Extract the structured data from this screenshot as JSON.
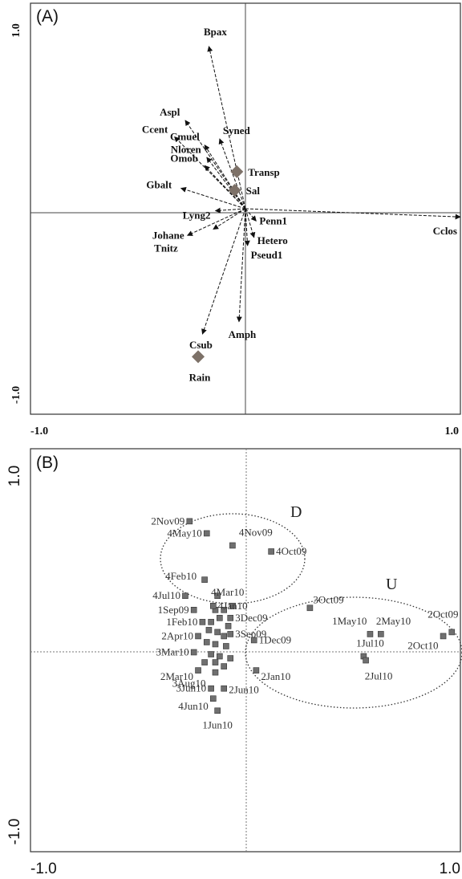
{
  "chart_data": [
    {
      "type": "scatter",
      "panel": "(A)",
      "xlim": [
        -1.0,
        1.0
      ],
      "ylim": [
        -1.0,
        1.0
      ],
      "x_tick_labels": [
        "-1.0",
        "1.0"
      ],
      "y_tick_labels": [
        "1.0",
        "-1.0"
      ],
      "vectors": [
        {
          "label": "Bpax",
          "x": -0.17,
          "y": 0.79
        },
        {
          "label": "Aspl",
          "x": -0.28,
          "y": 0.43
        },
        {
          "label": "Ccent",
          "x": -0.33,
          "y": 0.35
        },
        {
          "label": "Cmuel",
          "x": -0.19,
          "y": 0.31
        },
        {
          "label": "Syned",
          "x": -0.12,
          "y": 0.34
        },
        {
          "label": "Nloren",
          "x": -0.18,
          "y": 0.25
        },
        {
          "label": "Omob",
          "x": -0.19,
          "y": 0.21
        },
        {
          "label": "Gbalt",
          "x": -0.3,
          "y": 0.1
        },
        {
          "label": "Lyng2",
          "x": -0.14,
          "y": -0.01
        },
        {
          "label": "Johane",
          "x": -0.27,
          "y": -0.13
        },
        {
          "label": "Tnitz",
          "x": -0.15,
          "y": -0.1
        },
        {
          "label": "Penn1",
          "x": 0.05,
          "y": -0.06
        },
        {
          "label": "Hetero",
          "x": 0.04,
          "y": -0.14
        },
        {
          "label": "Pseud1",
          "x": 0.01,
          "y": -0.18
        },
        {
          "label": "Cclos",
          "x": 1.0,
          "y": -0.04
        },
        {
          "label": "Csub",
          "x": -0.2,
          "y": -0.61
        },
        {
          "label": "Amph",
          "x": -0.03,
          "y": -0.55
        }
      ],
      "env_points": [
        {
          "label": "Transp",
          "x": -0.04,
          "y": 0.18
        },
        {
          "label": "Sal",
          "x": -0.05,
          "y": 0.09
        },
        {
          "label": "Rain",
          "x": -0.22,
          "y": -0.72
        }
      ]
    },
    {
      "type": "scatter",
      "panel": "(B)",
      "xlim": [
        -1.0,
        1.0
      ],
      "ylim": [
        -1.0,
        1.0
      ],
      "x_tick_labels": [
        "-1.0",
        "1.0"
      ],
      "y_tick_labels": [
        "1.0",
        "-1.0"
      ],
      "groups": [
        "D",
        "U"
      ],
      "points": [
        {
          "label": "2Nov09",
          "x": -0.26,
          "y": 0.64
        },
        {
          "label": "4May10",
          "x": -0.18,
          "y": 0.58
        },
        {
          "label": "4Nov09",
          "x": -0.06,
          "y": 0.52
        },
        {
          "label": "4Oct09",
          "x": 0.12,
          "y": 0.49
        },
        {
          "label": "4Feb10",
          "x": -0.19,
          "y": 0.35
        },
        {
          "label": "4Mar10",
          "x": -0.13,
          "y": 0.27
        },
        {
          "label": "4Jul10",
          "x": -0.28,
          "y": 0.27
        },
        {
          "label": "4Jan10",
          "x": -0.15,
          "y": 0.22
        },
        {
          "label": "1Sep09",
          "x": -0.24,
          "y": 0.2
        },
        {
          "label": "3Oct09",
          "x": 0.3,
          "y": 0.21
        },
        {
          "label": "3Dec09",
          "x": -0.07,
          "y": 0.16
        },
        {
          "label": "1Feb10",
          "x": -0.2,
          "y": 0.14
        },
        {
          "label": "3Sep09",
          "x": -0.07,
          "y": 0.08
        },
        {
          "label": "2Apr10",
          "x": -0.22,
          "y": 0.07
        },
        {
          "label": "1May10",
          "x": 0.58,
          "y": 0.08
        },
        {
          "label": "2May10",
          "x": 0.63,
          "y": 0.08
        },
        {
          "label": "2Oct09",
          "x": 0.96,
          "y": 0.09
        },
        {
          "label": "2Oct10",
          "x": 0.92,
          "y": 0.07
        },
        {
          "label": "1Dec09",
          "x": 0.04,
          "y": 0.05
        },
        {
          "label": "3Mar10",
          "x": -0.24,
          "y": -0.01
        },
        {
          "label": "2Mar10",
          "x": -0.22,
          "y": -0.1
        },
        {
          "label": "3Aug10",
          "x": -0.14,
          "y": -0.11
        },
        {
          "label": "2Jan10",
          "x": 0.05,
          "y": -0.1
        },
        {
          "label": "1Jul10",
          "x": 0.55,
          "y": -0.03
        },
        {
          "label": "2Jul10",
          "x": 0.56,
          "y": -0.05
        },
        {
          "label": "3Jun10",
          "x": -0.16,
          "y": -0.19
        },
        {
          "label": "2Jun10",
          "x": -0.1,
          "y": -0.19
        },
        {
          "label": "4Jun10",
          "x": -0.15,
          "y": -0.24
        },
        {
          "label": "1Jun10",
          "x": -0.13,
          "y": -0.3
        }
      ],
      "unlabeled_points": [
        {
          "x": -0.14,
          "y": 0.2
        },
        {
          "x": -0.1,
          "y": 0.2
        },
        {
          "x": -0.06,
          "y": 0.22
        },
        {
          "x": -0.16,
          "y": 0.14
        },
        {
          "x": -0.12,
          "y": 0.16
        },
        {
          "x": -0.08,
          "y": 0.12
        },
        {
          "x": -0.17,
          "y": 0.1
        },
        {
          "x": -0.13,
          "y": 0.09
        },
        {
          "x": -0.1,
          "y": 0.07
        },
        {
          "x": -0.18,
          "y": 0.04
        },
        {
          "x": -0.14,
          "y": 0.03
        },
        {
          "x": -0.09,
          "y": 0.02
        },
        {
          "x": -0.16,
          "y": -0.02
        },
        {
          "x": -0.12,
          "y": -0.03
        },
        {
          "x": -0.07,
          "y": -0.04
        },
        {
          "x": -0.19,
          "y": -0.06
        },
        {
          "x": -0.14,
          "y": -0.06
        },
        {
          "x": -0.1,
          "y": -0.08
        }
      ]
    }
  ]
}
